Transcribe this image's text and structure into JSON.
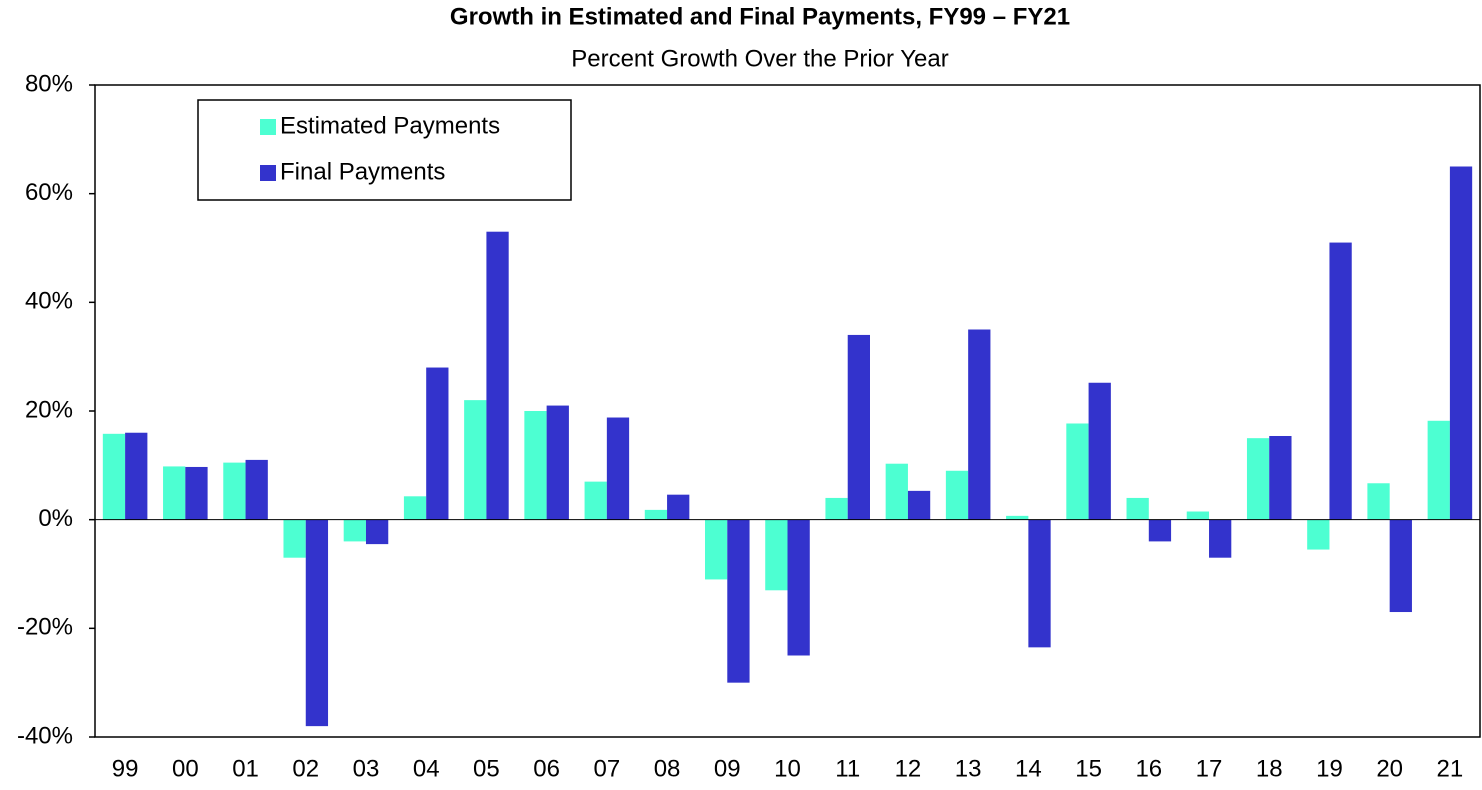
{
  "chart_data": {
    "type": "bar",
    "title": "Growth in Estimated and Final Payments, FY99 – FY21",
    "subtitle": "Percent Growth Over the Prior Year",
    "categories": [
      "99",
      "00",
      "01",
      "02",
      "03",
      "04",
      "05",
      "06",
      "07",
      "08",
      "09",
      "10",
      "11",
      "12",
      "13",
      "14",
      "15",
      "16",
      "17",
      "18",
      "19",
      "20",
      "21"
    ],
    "series": [
      {
        "name": "Estimated Payments",
        "color": "#4dffd2",
        "values": [
          15.8,
          9.8,
          10.5,
          -7,
          -4,
          4.3,
          22,
          20,
          7,
          1.8,
          -11,
          -13,
          4,
          10.3,
          9,
          0.7,
          17.7,
          4,
          1.5,
          15,
          -5.5,
          6.7,
          18.2
        ]
      },
      {
        "name": "Final Payments",
        "color": "#3333cc",
        "values": [
          16,
          9.7,
          11,
          -38,
          -4.5,
          28,
          53,
          21,
          18.8,
          4.6,
          -30,
          -25,
          34,
          5.3,
          35,
          -23.5,
          25.2,
          -4,
          -7,
          15.4,
          51,
          -17,
          65
        ]
      }
    ],
    "ylim": [
      -40,
      80
    ],
    "yticks": [
      {
        "value": -40,
        "label": "-40%"
      },
      {
        "value": -20,
        "label": "-20%"
      },
      {
        "value": 0,
        "label": "0%"
      },
      {
        "value": 20,
        "label": "20%"
      },
      {
        "value": 40,
        "label": "40%"
      },
      {
        "value": 60,
        "label": "60%"
      },
      {
        "value": 80,
        "label": "80%"
      }
    ],
    "grid": false,
    "legend": "upper left"
  }
}
